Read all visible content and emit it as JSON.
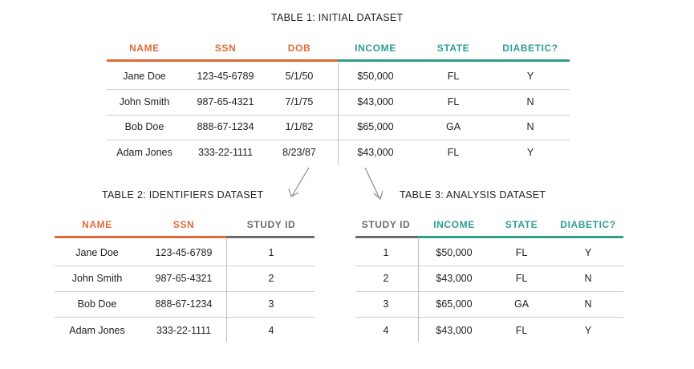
{
  "colors": {
    "identifier_accent": "#e06b3a",
    "analysis_accent": "#2f9e8f",
    "study_id_accent": "#6b6b6b"
  },
  "table1": {
    "title": "TABLE 1: INITIAL DATASET",
    "headers": [
      "NAME",
      "SSN",
      "DOB",
      "INCOME",
      "STATE",
      "DIABETIC?"
    ],
    "rows": [
      [
        "Jane Doe",
        "123-45-6789",
        "5/1/50",
        "$50,000",
        "FL",
        "Y"
      ],
      [
        "John Smith",
        "987-65-4321",
        "7/1/75",
        "$43,000",
        "FL",
        "N"
      ],
      [
        "Bob Doe",
        "888-67-1234",
        "1/1/82",
        "$65,000",
        "GA",
        "N"
      ],
      [
        "Adam Jones",
        "333-22-1111",
        "8/23/87",
        "$43,000",
        "FL",
        "Y"
      ]
    ]
  },
  "table2": {
    "title": "TABLE 2: IDENTIFIERS DATASET",
    "headers": [
      "NAME",
      "SSN",
      "STUDY ID"
    ],
    "rows": [
      [
        "Jane Doe",
        "123-45-6789",
        "1"
      ],
      [
        "John Smith",
        "987-65-4321",
        "2"
      ],
      [
        "Bob Doe",
        "888-67-1234",
        "3"
      ],
      [
        "Adam Jones",
        "333-22-1111",
        "4"
      ]
    ]
  },
  "table3": {
    "title": "TABLE 3: ANALYSIS DATASET",
    "headers": [
      "STUDY ID",
      "INCOME",
      "STATE",
      "DIABETIC?"
    ],
    "rows": [
      [
        "1",
        "$50,000",
        "FL",
        "Y"
      ],
      [
        "2",
        "$43,000",
        "FL",
        "N"
      ],
      [
        "3",
        "$65,000",
        "GA",
        "N"
      ],
      [
        "4",
        "$43,000",
        "FL",
        "Y"
      ]
    ]
  }
}
